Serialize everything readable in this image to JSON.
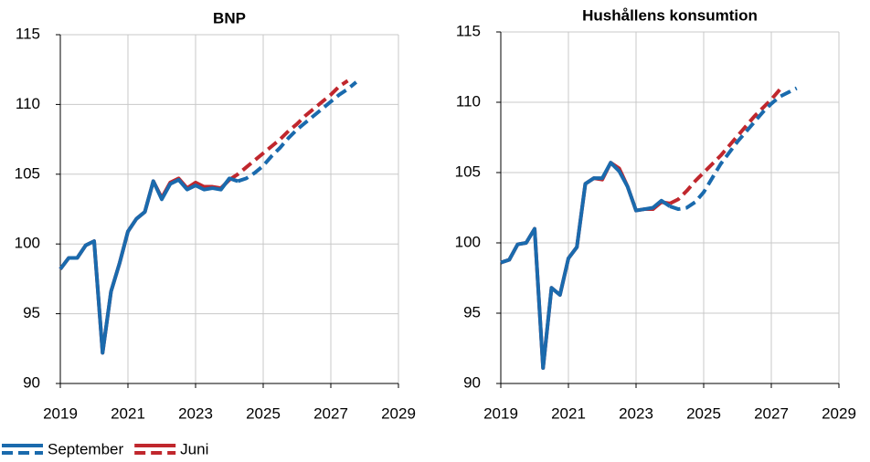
{
  "chart_data": [
    {
      "type": "line",
      "title": "BNP",
      "x": [
        2019,
        2019.25,
        2019.5,
        2019.75,
        2020,
        2020.25,
        2020.5,
        2020.75,
        2021,
        2021.25,
        2021.5,
        2021.75,
        2022,
        2022.25,
        2022.5,
        2022.75,
        2023,
        2023.25,
        2023.5,
        2023.75,
        2024,
        2024.25,
        2024.5,
        2024.75,
        2025,
        2025.25,
        2025.5,
        2025.75,
        2026,
        2026.25,
        2026.5,
        2026.75,
        2027,
        2027.25,
        2027.5,
        2027.75
      ],
      "series": [
        {
          "name": "Juni",
          "color": "#c0272d",
          "dashed_from": 2024,
          "values": [
            98.2,
            99.0,
            99.0,
            99.9,
            100.2,
            92.2,
            96.6,
            98.6,
            100.9,
            101.8,
            102.3,
            104.5,
            103.3,
            104.4,
            104.7,
            104.0,
            104.4,
            104.1,
            104.1,
            104.0,
            104.6,
            105.0,
            105.5,
            106.0,
            106.5,
            107.0,
            107.5,
            108.1,
            108.6,
            109.2,
            109.7,
            110.2,
            110.7,
            111.3,
            111.7,
            null
          ]
        },
        {
          "name": "September",
          "color": "#1a6aad",
          "dashed_from": 2024.25,
          "values": [
            98.2,
            99.0,
            99.0,
            99.9,
            100.2,
            92.2,
            96.6,
            98.6,
            100.9,
            101.8,
            102.3,
            104.5,
            103.2,
            104.3,
            104.6,
            103.9,
            104.2,
            103.9,
            104.0,
            103.9,
            104.7,
            104.5,
            104.7,
            105.1,
            105.6,
            106.3,
            106.9,
            107.6,
            108.2,
            108.7,
            109.2,
            109.7,
            110.2,
            110.7,
            111.1,
            111.6
          ]
        }
      ],
      "xlim": [
        2019,
        2029
      ],
      "xticks": [
        2019,
        2021,
        2023,
        2025,
        2027,
        2029
      ],
      "ylim": [
        90,
        115
      ],
      "yticks": [
        90,
        95,
        100,
        105,
        110,
        115
      ],
      "grid": true
    },
    {
      "type": "line",
      "title": "Hushållens konsumtion",
      "x": [
        2019,
        2019.25,
        2019.5,
        2019.75,
        2020,
        2020.25,
        2020.5,
        2020.75,
        2021,
        2021.25,
        2021.5,
        2021.75,
        2022,
        2022.25,
        2022.5,
        2022.75,
        2023,
        2023.25,
        2023.5,
        2023.75,
        2024,
        2024.25,
        2024.5,
        2024.75,
        2025,
        2025.25,
        2025.5,
        2025.75,
        2026,
        2026.25,
        2026.5,
        2026.75,
        2027,
        2027.25,
        2027.5,
        2027.75
      ],
      "series": [
        {
          "name": "Juni",
          "color": "#c0272d",
          "dashed_from": 2024,
          "values": [
            98.6,
            98.8,
            99.9,
            100.0,
            101.0,
            91.1,
            96.8,
            96.3,
            98.9,
            99.7,
            104.2,
            104.6,
            104.5,
            105.7,
            105.3,
            104.0,
            102.3,
            102.4,
            102.4,
            102.9,
            102.8,
            103.1,
            103.7,
            104.4,
            105.0,
            105.6,
            106.2,
            106.9,
            107.6,
            108.3,
            109.0,
            109.6,
            110.2,
            110.9,
            null,
            null
          ]
        },
        {
          "name": "September",
          "color": "#1a6aad",
          "dashed_from": 2024,
          "values": [
            98.6,
            98.8,
            99.9,
            100.0,
            101.0,
            91.1,
            96.8,
            96.3,
            98.9,
            99.7,
            104.2,
            104.6,
            104.6,
            105.7,
            105.1,
            104.0,
            102.3,
            102.4,
            102.5,
            103.0,
            102.6,
            102.4,
            102.5,
            102.9,
            103.6,
            104.6,
            105.6,
            106.4,
            107.2,
            107.9,
            108.6,
            109.3,
            109.9,
            110.4,
            110.7,
            111.0
          ]
        }
      ],
      "xlim": [
        2019,
        2029
      ],
      "xticks": [
        2019,
        2021,
        2023,
        2025,
        2027,
        2029
      ],
      "ylim": [
        90,
        115
      ],
      "yticks": [
        90,
        95,
        100,
        105,
        110,
        115
      ],
      "grid": true
    }
  ]
}
